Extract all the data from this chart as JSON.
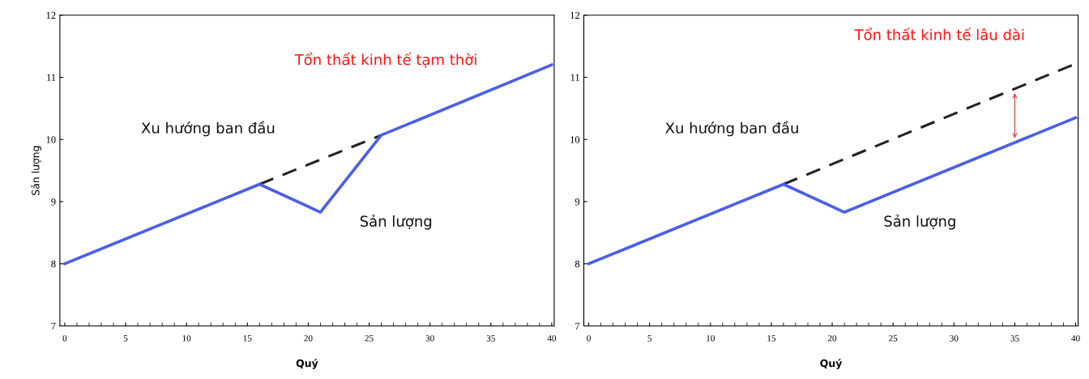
{
  "chart_data": [
    {
      "type": "line",
      "ylabel": "Sản lượng",
      "xlabel": "Quý",
      "xlim": [
        -0.4,
        40.2
      ],
      "ylim": [
        7,
        12
      ],
      "xticks": [
        0,
        5,
        10,
        15,
        20,
        25,
        30,
        35,
        40
      ],
      "yticks": [
        7,
        8,
        9,
        10,
        11,
        12
      ],
      "grid": false,
      "legend": false,
      "series": [
        {
          "color": "#4a5fe8",
          "line_style": "solid",
          "x": [
            0,
            16,
            21,
            26,
            40
          ],
          "values": [
            8,
            9.28,
            8.83,
            10.07,
            11.2
          ]
        },
        {
          "color": "#222222",
          "line_style": "dashed",
          "x": [
            16,
            26
          ],
          "values": [
            9.28,
            10.07
          ]
        }
      ],
      "annotations": [
        "Xu hướng ban đầu",
        "Sản lượng",
        "Tổn thất kinh tế tạm thời"
      ]
    },
    {
      "type": "line",
      "xlabel": "Quý",
      "xlim": [
        -0.4,
        40.2
      ],
      "ylim": [
        7,
        12
      ],
      "xticks": [
        0,
        5,
        10,
        15,
        20,
        25,
        30,
        35,
        40
      ],
      "yticks": [
        7,
        8,
        9,
        10,
        11,
        12
      ],
      "grid": false,
      "legend": false,
      "series": [
        {
          "color": "#4a5fe8",
          "line_style": "solid",
          "x": [
            0,
            16,
            21,
            40
          ],
          "values": [
            8,
            9.28,
            8.83,
            10.35
          ]
        },
        {
          "color": "#222222",
          "line_style": "dashed",
          "x": [
            16,
            40
          ],
          "values": [
            9.28,
            11.22
          ]
        }
      ],
      "annotations": [
        "Xu hướng ban đầu",
        "Sản lượng",
        "Tổn thất kinh tế lâu dài"
      ]
    }
  ]
}
